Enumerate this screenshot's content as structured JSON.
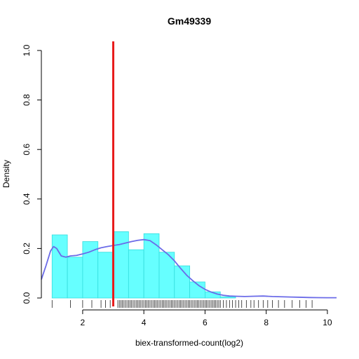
{
  "chart_data": {
    "type": "histogram",
    "title": "Gm49339",
    "xlabel": "biex-transformed-count(log2)",
    "ylabel": "Density",
    "xlim": [
      0.65,
      10.3
    ],
    "ylim": [
      0,
      1.0
    ],
    "x_ticks": [
      2,
      4,
      6,
      8,
      10
    ],
    "y_ticks": [
      0.0,
      0.2,
      0.4,
      0.6,
      0.8,
      1.0
    ],
    "x_tick_labels": [
      "2",
      "4",
      "6",
      "8",
      "10"
    ],
    "y_tick_labels": [
      "0.0",
      "0.2",
      "0.4",
      "0.6",
      "0.8",
      "1.0"
    ],
    "grid": false,
    "histogram": {
      "fill_color": "#66FFFF",
      "border_color": "#33DDDD",
      "bins": [
        {
          "x0": 1.0,
          "x1": 1.5,
          "density": 0.255
        },
        {
          "x0": 1.5,
          "x1": 2.0,
          "density": 0.165
        },
        {
          "x0": 2.0,
          "x1": 2.5,
          "density": 0.228
        },
        {
          "x0": 2.5,
          "x1": 3.0,
          "density": 0.185
        },
        {
          "x0": 3.0,
          "x1": 3.5,
          "density": 0.268
        },
        {
          "x0": 3.5,
          "x1": 4.0,
          "density": 0.195
        },
        {
          "x0": 4.0,
          "x1": 4.5,
          "density": 0.26
        },
        {
          "x0": 4.5,
          "x1": 5.0,
          "density": 0.185
        },
        {
          "x0": 5.0,
          "x1": 5.5,
          "density": 0.13
        },
        {
          "x0": 5.5,
          "x1": 6.0,
          "density": 0.065
        },
        {
          "x0": 6.0,
          "x1": 6.5,
          "density": 0.025
        },
        {
          "x0": 6.5,
          "x1": 7.0,
          "density": 0.005
        }
      ]
    },
    "density_curve": {
      "color": "#6B6BE8",
      "x": [
        0.65,
        0.8,
        0.95,
        1.05,
        1.15,
        1.3,
        1.45,
        1.6,
        1.8,
        2.0,
        2.2,
        2.4,
        2.6,
        2.8,
        3.0,
        3.2,
        3.4,
        3.6,
        3.8,
        4.0,
        4.2,
        4.4,
        4.6,
        4.8,
        5.0,
        5.2,
        5.4,
        5.6,
        5.8,
        6.0,
        6.2,
        6.4,
        6.6,
        6.8,
        7.0,
        7.3,
        7.6,
        7.9,
        8.2,
        8.5,
        8.8,
        9.1,
        9.4,
        9.7,
        10.0,
        10.3
      ],
      "y": [
        0.075,
        0.13,
        0.19,
        0.208,
        0.2,
        0.17,
        0.165,
        0.17,
        0.172,
        0.178,
        0.185,
        0.195,
        0.203,
        0.208,
        0.212,
        0.216,
        0.222,
        0.228,
        0.233,
        0.236,
        0.232,
        0.215,
        0.195,
        0.175,
        0.15,
        0.12,
        0.092,
        0.07,
        0.05,
        0.035,
        0.024,
        0.016,
        0.011,
        0.008,
        0.007,
        0.006,
        0.007,
        0.008,
        0.006,
        0.005,
        0.004,
        0.003,
        0.002,
        0.0015,
        0.001,
        0.001
      ]
    },
    "threshold_line": {
      "x": 3.0,
      "color": "#E81C1C"
    },
    "rug": [
      1.0,
      1.6,
      2.0,
      2.3,
      2.6,
      2.75,
      2.9,
      3.15,
      3.2,
      3.25,
      3.3,
      3.35,
      3.4,
      3.45,
      3.5,
      3.55,
      3.6,
      3.65,
      3.7,
      3.75,
      3.8,
      3.85,
      3.9,
      3.95,
      4.0,
      4.05,
      4.1,
      4.15,
      4.2,
      4.25,
      4.3,
      4.35,
      4.4,
      4.45,
      4.5,
      4.55,
      4.6,
      4.65,
      4.7,
      4.75,
      4.8,
      4.85,
      4.9,
      4.95,
      5.0,
      5.05,
      5.1,
      5.15,
      5.2,
      5.25,
      5.3,
      5.35,
      5.4,
      5.45,
      5.5,
      5.55,
      5.6,
      5.65,
      5.7,
      5.75,
      5.8,
      5.85,
      5.9,
      5.95,
      6.0,
      6.05,
      6.1,
      6.15,
      6.2,
      6.25,
      6.3,
      6.35,
      6.4,
      6.45,
      6.5,
      6.6,
      6.7,
      6.8,
      6.9,
      7.0,
      7.1,
      7.2,
      7.35,
      7.5,
      7.6,
      7.75,
      7.9,
      8.05,
      8.2,
      8.4,
      8.6,
      8.85,
      9.1,
      9.3,
      9.5
    ]
  }
}
